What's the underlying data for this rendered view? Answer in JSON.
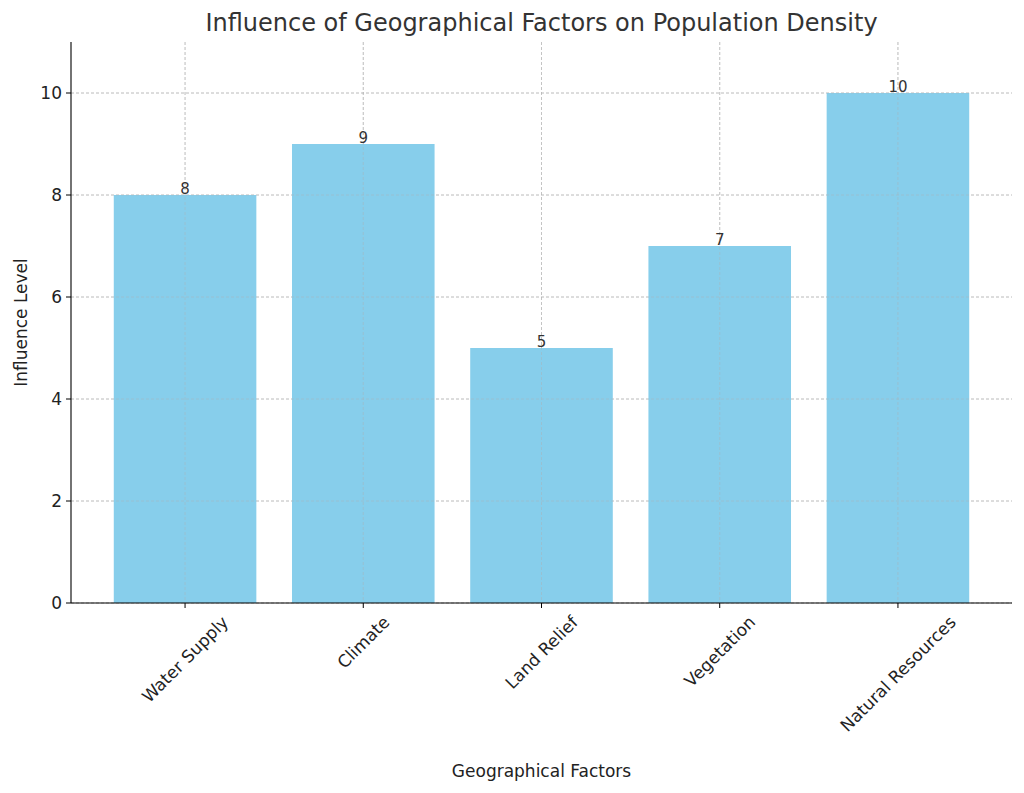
{
  "chart_data": {
    "type": "bar",
    "title": "Influence of Geographical Factors on Population Density",
    "x_label": "Geographical Factors",
    "y_label": "Influence Level",
    "categories": [
      "Water Supply",
      "Climate",
      "Land Relief",
      "Vegetation",
      "Natural Resources"
    ],
    "values": [
      8,
      9,
      5,
      7,
      10
    ],
    "color": "#87ceeb",
    "ylim": [
      0,
      11
    ],
    "yticks": [
      0,
      2,
      4,
      6,
      8,
      10
    ],
    "grid": true,
    "data_labels": true
  }
}
